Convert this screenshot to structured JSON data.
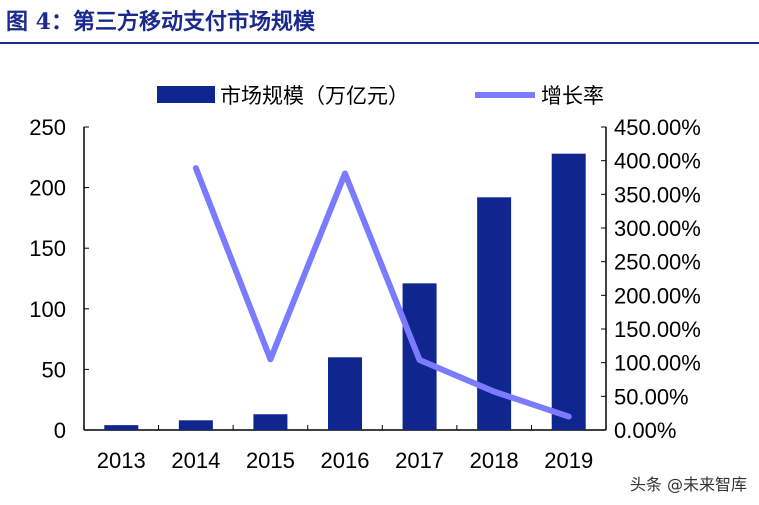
{
  "title": "图 4：第三方移动支付市场规模",
  "watermark": "头条 @未来智库",
  "chart_data": {
    "type": "bar+line",
    "categories": [
      "2013",
      "2014",
      "2015",
      "2016",
      "2017",
      "2018",
      "2019"
    ],
    "series": [
      {
        "name": "市场规模（万亿元）",
        "type": "bar",
        "axis": "left",
        "color": "#0f268f",
        "values": [
          4,
          8,
          13,
          60,
          121,
          192,
          228
        ]
      },
      {
        "name": "增长率",
        "type": "line",
        "axis": "right",
        "color": "#7b7bff",
        "values": [
          null,
          389,
          105,
          381,
          104,
          57,
          20
        ]
      }
    ],
    "left_axis": {
      "range": [
        0,
        250
      ],
      "ticks": [
        "0",
        "50",
        "100",
        "150",
        "200",
        "250"
      ]
    },
    "right_axis": {
      "range": [
        0,
        450
      ],
      "unit": "%",
      "ticks": [
        "0.00%",
        "50.00%",
        "100.00%",
        "150.00%",
        "200.00%",
        "250.00%",
        "300.00%",
        "350.00%",
        "400.00%",
        "450.00%"
      ]
    },
    "legend": "top",
    "grid": false
  }
}
